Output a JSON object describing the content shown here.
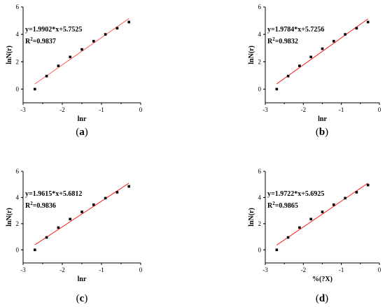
{
  "chart_data": [
    {
      "type": "scatter",
      "xlabel": "lnr",
      "ylabel": "lnN(r)",
      "equation": "y=1.9902*x+5.7525",
      "r2_prefix": "R",
      "r2_sup": "2",
      "r2_value": "=0.9837",
      "caption_open": "(",
      "caption_letter": "a",
      "caption_close": ")",
      "xlim": [
        -3,
        0
      ],
      "ylim": [
        -1,
        6
      ],
      "xticks": [
        -3,
        -2,
        -1,
        0
      ],
      "yticks": [
        0,
        2,
        4,
        6
      ],
      "fit": {
        "slope": 1.9902,
        "intercept": 5.7525,
        "x_range": [
          -2.7,
          -0.3
        ]
      },
      "points": [
        {
          "x": -2.7,
          "y": 0.0
        },
        {
          "x": -2.4,
          "y": 0.95
        },
        {
          "x": -2.1,
          "y": 1.7
        },
        {
          "x": -1.8,
          "y": 2.35
        },
        {
          "x": -1.5,
          "y": 2.9
        },
        {
          "x": -1.2,
          "y": 3.5
        },
        {
          "x": -0.9,
          "y": 4.0
        },
        {
          "x": -0.6,
          "y": 4.45
        },
        {
          "x": -0.3,
          "y": 4.9
        }
      ],
      "colors": {
        "points": "#000000",
        "fit": "#ff5a5a"
      }
    },
    {
      "type": "scatter",
      "xlabel": "lnr",
      "ylabel": "lnN(r)",
      "equation": "y=1.9784*x+5.7256",
      "r2_prefix": "R",
      "r2_sup": "2",
      "r2_value": "=0.9832",
      "caption_open": "(",
      "caption_letter": "b",
      "caption_close": ")",
      "xlim": [
        -3,
        0
      ],
      "ylim": [
        -1,
        6
      ],
      "xticks": [
        -3,
        -2,
        -1,
        0
      ],
      "yticks": [
        0,
        2,
        4,
        6
      ],
      "fit": {
        "slope": 1.9784,
        "intercept": 5.7256,
        "x_range": [
          -2.7,
          -0.3
        ]
      },
      "points": [
        {
          "x": -2.7,
          "y": 0.0
        },
        {
          "x": -2.4,
          "y": 0.95
        },
        {
          "x": -2.1,
          "y": 1.7
        },
        {
          "x": -1.8,
          "y": 2.35
        },
        {
          "x": -1.5,
          "y": 2.95
        },
        {
          "x": -1.2,
          "y": 3.5
        },
        {
          "x": -0.9,
          "y": 4.0
        },
        {
          "x": -0.6,
          "y": 4.45
        },
        {
          "x": -0.3,
          "y": 4.9
        }
      ],
      "colors": {
        "points": "#000000",
        "fit": "#ff2020"
      }
    },
    {
      "type": "scatter",
      "xlabel": "lnr",
      "ylabel": "lnN(r)",
      "equation": "y=1.9615*x+5.6812",
      "r2_prefix": "R",
      "r2_sup": "2",
      "r2_value": "=0.9836",
      "caption_open": "(",
      "caption_letter": "c",
      "caption_close": ")",
      "xlim": [
        -3,
        0
      ],
      "ylim": [
        -1,
        6
      ],
      "xticks": [
        -3,
        -2,
        -1,
        0
      ],
      "yticks": [
        0,
        2,
        4,
        6
      ],
      "fit": {
        "slope": 1.9615,
        "intercept": 5.6812,
        "x_range": [
          -2.7,
          -0.3
        ]
      },
      "points": [
        {
          "x": -2.7,
          "y": 0.0
        },
        {
          "x": -2.4,
          "y": 0.95
        },
        {
          "x": -2.1,
          "y": 1.7
        },
        {
          "x": -1.8,
          "y": 2.35
        },
        {
          "x": -1.5,
          "y": 2.9
        },
        {
          "x": -1.2,
          "y": 3.45
        },
        {
          "x": -0.9,
          "y": 3.95
        },
        {
          "x": -0.6,
          "y": 4.4
        },
        {
          "x": -0.3,
          "y": 4.85
        }
      ],
      "colors": {
        "points": "#000000",
        "fit": "#ff2020"
      }
    },
    {
      "type": "scatter",
      "xlabel": "%(?X)",
      "ylabel": "lnN(r)",
      "equation": "y=1.9722*x+5.6925",
      "r2_prefix": "R",
      "r2_sup": "2",
      "r2_value": "=0.9865",
      "caption_open": "(",
      "caption_letter": "d",
      "caption_close": ")",
      "xlim": [
        -3,
        0
      ],
      "ylim": [
        -1,
        6
      ],
      "xticks": [
        -3,
        -2,
        -1,
        0
      ],
      "yticks": [
        0,
        2,
        4,
        6
      ],
      "fit": {
        "slope": 1.9722,
        "intercept": 5.6925,
        "x_range": [
          -2.7,
          -0.3
        ]
      },
      "points": [
        {
          "x": -2.7,
          "y": 0.0
        },
        {
          "x": -2.4,
          "y": 0.95
        },
        {
          "x": -2.1,
          "y": 1.7
        },
        {
          "x": -1.8,
          "y": 2.35
        },
        {
          "x": -1.5,
          "y": 2.9
        },
        {
          "x": -1.2,
          "y": 3.45
        },
        {
          "x": -0.9,
          "y": 3.95
        },
        {
          "x": -0.6,
          "y": 4.4
        },
        {
          "x": -0.3,
          "y": 4.95
        }
      ],
      "colors": {
        "points": "#000000",
        "fit": "#ff2020"
      }
    }
  ]
}
